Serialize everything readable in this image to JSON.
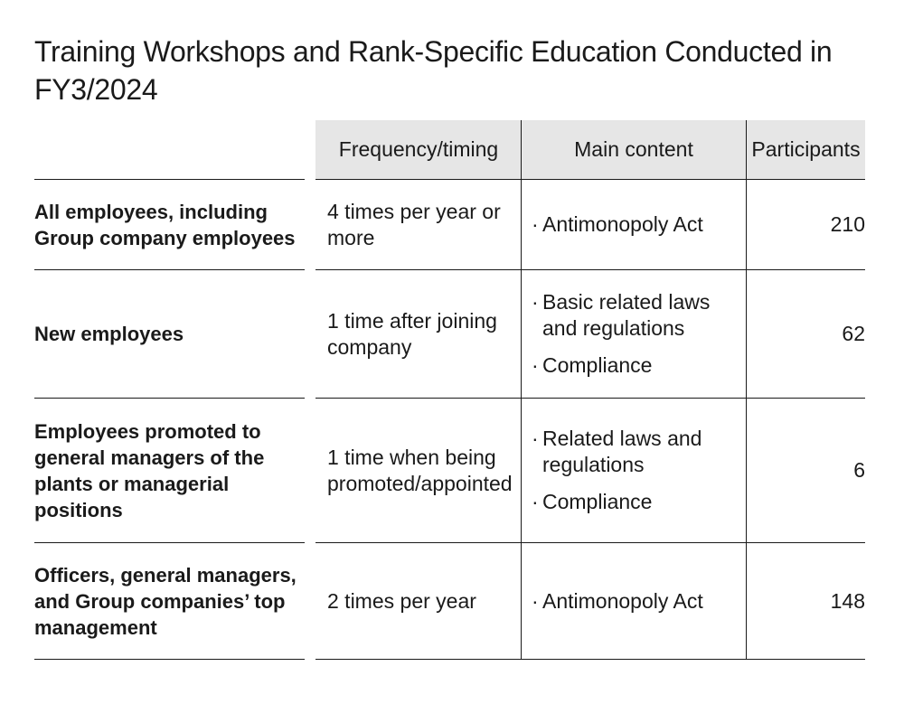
{
  "title": "Training Workshops and Rank-Specific Education Conducted in FY3/2024",
  "columns": {
    "frequency": "Frequency/timing",
    "content": "Main content",
    "participants": "Participants"
  },
  "bullet_char": "·",
  "rows": [
    {
      "label": "All employees, including Group company employees",
      "frequency": "4 times per year or more",
      "content": [
        "Antimonopoly Act"
      ],
      "participants": "210"
    },
    {
      "label": "New employees",
      "frequency": "1 time after joining company",
      "content": [
        "Basic related laws and regulations",
        "Compliance"
      ],
      "participants": "62"
    },
    {
      "label": "Employees promoted to general managers of the plants or managerial positions",
      "frequency": "1 time when being promoted/appointed",
      "content": [
        "Related laws and regulations",
        "Compliance"
      ],
      "participants": "6"
    },
    {
      "label": "Officers, general managers, and Group companies’ top management",
      "frequency": "2 times per year",
      "content": [
        "Antimonopoly Act"
      ],
      "participants": "148"
    }
  ]
}
